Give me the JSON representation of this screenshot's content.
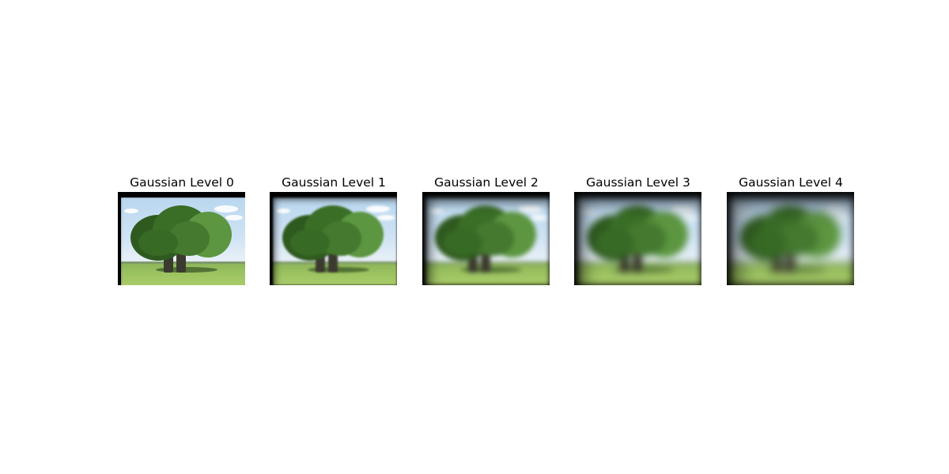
{
  "figure": {
    "panels": [
      {
        "title": "Gaussian Level 0",
        "level": 0
      },
      {
        "title": "Gaussian Level 1",
        "level": 1
      },
      {
        "title": "Gaussian Level 2",
        "level": 2
      },
      {
        "title": "Gaussian Level 3",
        "level": 3
      },
      {
        "title": "Gaussian Level 4",
        "level": 4
      }
    ],
    "colors": {
      "sky": "#c9dff2",
      "foliage_dark": "#2f5a1f",
      "foliage_mid": "#3f7a2c",
      "foliage_light": "#5c9640",
      "grass": "#9bc260",
      "trunk": "#3b3a2e",
      "border": "#000000"
    }
  }
}
